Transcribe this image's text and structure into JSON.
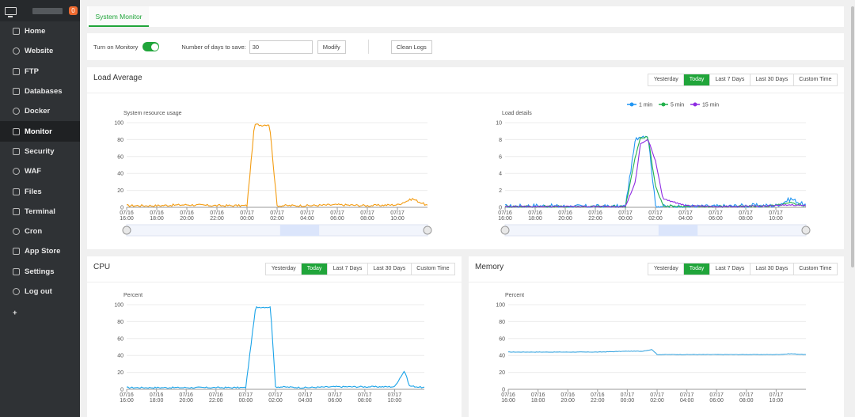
{
  "sidebar": {
    "badge": "0",
    "items": [
      {
        "label": "Home",
        "icon": "home-icon"
      },
      {
        "label": "Website",
        "icon": "globe-icon"
      },
      {
        "label": "FTP",
        "icon": "ftp-icon"
      },
      {
        "label": "Databases",
        "icon": "database-icon"
      },
      {
        "label": "Docker",
        "icon": "docker-icon"
      },
      {
        "label": "Monitor",
        "icon": "monitor-icon"
      },
      {
        "label": "Security",
        "icon": "shield-icon"
      },
      {
        "label": "WAF",
        "icon": "waf-icon"
      },
      {
        "label": "Files",
        "icon": "folder-icon"
      },
      {
        "label": "Terminal",
        "icon": "terminal-icon"
      },
      {
        "label": "Cron",
        "icon": "clock-icon"
      },
      {
        "label": "App Store",
        "icon": "grid-icon"
      },
      {
        "label": "Settings",
        "icon": "gear-icon"
      },
      {
        "label": "Log out",
        "icon": "logout-icon"
      }
    ],
    "active": "Monitor",
    "add_label": "+"
  },
  "tabs": {
    "system_monitor": "System Monitor"
  },
  "controls": {
    "monitor_label": "Turn on Monitory",
    "monitor_on": true,
    "days_label": "Number of days to save:",
    "days_value": "30",
    "modify": "Modify",
    "clean_logs": "Clean Logs"
  },
  "ranges": [
    "Yesterday",
    "Today",
    "Last 7 Days",
    "Last 30 Days",
    "Custom Time"
  ],
  "selected_range": "Today",
  "colors": {
    "accent": "#20a53a",
    "orange": "#f39c12",
    "blue": "#2196f3",
    "green": "#22b14c",
    "purple": "#8e2be2",
    "cpu": "#1aa3e8",
    "mem": "#3ea7e0"
  },
  "x_ticks": [
    [
      "07/16",
      "16:00"
    ],
    [
      "07/16",
      "18:00"
    ],
    [
      "07/16",
      "20:00"
    ],
    [
      "07/16",
      "22:00"
    ],
    [
      "07/17",
      "00:00"
    ],
    [
      "07/17",
      "02:00"
    ],
    [
      "07/17",
      "04:00"
    ],
    [
      "07/17",
      "06:00"
    ],
    [
      "07/17",
      "08:00"
    ],
    [
      "07/17",
      "10:00"
    ]
  ],
  "load": {
    "title": "Load Average",
    "resource": {
      "ylabel": "System resource usage",
      "y_ticks": [
        "100",
        "80",
        "60",
        "40",
        "20",
        "0"
      ]
    },
    "details": {
      "ylabel": "Load details",
      "y_ticks": [
        "10",
        "8",
        "6",
        "4",
        "2",
        "0"
      ],
      "legend": [
        "1 min",
        "5 min",
        "15 min"
      ]
    }
  },
  "cpu": {
    "title": "CPU",
    "ylabel": "Percent",
    "y_ticks": [
      "100",
      "80",
      "60",
      "40",
      "20",
      "0"
    ]
  },
  "memory": {
    "title": "Memory",
    "ylabel": "Percent",
    "y_ticks": [
      "100",
      "80",
      "60",
      "40",
      "20",
      "0"
    ]
  },
  "chart_data": [
    {
      "type": "line",
      "title": "",
      "ylabel": "System resource usage",
      "ylim": [
        0,
        100
      ],
      "x": [
        "07/16 16:00",
        "07/16 18:00",
        "07/16 20:00",
        "07/16 22:00",
        "07/17 00:00",
        "07/17 00:30",
        "07/17 01:00",
        "07/17 01:30",
        "07/17 02:00",
        "07/17 04:00",
        "07/17 06:00",
        "07/17 08:00",
        "07/17 10:00",
        "07/17 11:00",
        "07/17 12:00"
      ],
      "series": [
        {
          "values": [
            2,
            2,
            3,
            2,
            2,
            98,
            97,
            98,
            2,
            2,
            3,
            2,
            3,
            10,
            2
          ]
        }
      ]
    },
    {
      "type": "line",
      "title": "",
      "ylabel": "Load details",
      "ylim": [
        0,
        10
      ],
      "x": [
        "07/16 16:00",
        "07/16 18:00",
        "07/16 20:00",
        "07/16 22:00",
        "07/17 00:00",
        "07/17 00:40",
        "07/17 01:00",
        "07/17 01:30",
        "07/17 02:00",
        "07/17 02:30",
        "07/17 04:00",
        "07/17 06:00",
        "07/17 08:00",
        "07/17 10:00",
        "07/17 11:00",
        "07/17 12:00"
      ],
      "series": [
        {
          "name": "1 min",
          "values": [
            0.1,
            0.2,
            0.1,
            0.1,
            0.1,
            8,
            8.4,
            8.5,
            0.2,
            0.1,
            0.1,
            0.1,
            0.2,
            0.2,
            1.0,
            0.2
          ]
        },
        {
          "name": "5 min",
          "values": [
            0.1,
            0.1,
            0.1,
            0.1,
            0.1,
            6,
            8.2,
            8.3,
            2.5,
            0.2,
            0.1,
            0.1,
            0.1,
            0.2,
            0.5,
            0.2
          ]
        },
        {
          "name": "15 min",
          "values": [
            0.1,
            0.1,
            0.1,
            0.1,
            0.1,
            3,
            7.5,
            8.0,
            5.5,
            1.0,
            0.2,
            0.1,
            0.1,
            0.2,
            0.3,
            0.2
          ]
        }
      ]
    },
    {
      "type": "line",
      "title": "",
      "ylabel": "Percent",
      "ylim": [
        0,
        100
      ],
      "x": [
        "07/16 16:00",
        "07/16 18:00",
        "07/16 20:00",
        "07/16 22:00",
        "07/17 00:00",
        "07/17 00:40",
        "07/17 01:00",
        "07/17 01:40",
        "07/17 02:00",
        "07/17 04:00",
        "07/17 06:00",
        "07/17 08:00",
        "07/17 10:00",
        "07/17 10:40",
        "07/17 11:00",
        "07/17 12:00"
      ],
      "series": [
        {
          "values": [
            2,
            2,
            2,
            2,
            2,
            97,
            97,
            97,
            3,
            2,
            3,
            3,
            3,
            22,
            4,
            2
          ]
        }
      ]
    },
    {
      "type": "line",
      "title": "",
      "ylabel": "Percent",
      "ylim": [
        0,
        100
      ],
      "x": [
        "07/16 16:00",
        "07/16 18:00",
        "07/16 20:00",
        "07/16 22:00",
        "07/17 00:00",
        "07/17 01:00",
        "07/17 01:40",
        "07/17 02:00",
        "07/17 04:00",
        "07/17 06:00",
        "07/17 08:00",
        "07/17 10:00",
        "07/17 11:00",
        "07/17 12:00"
      ],
      "series": [
        {
          "values": [
            44,
            44,
            44,
            44,
            45,
            45,
            47,
            41,
            41,
            41,
            41,
            41,
            42,
            41
          ]
        }
      ]
    }
  ]
}
